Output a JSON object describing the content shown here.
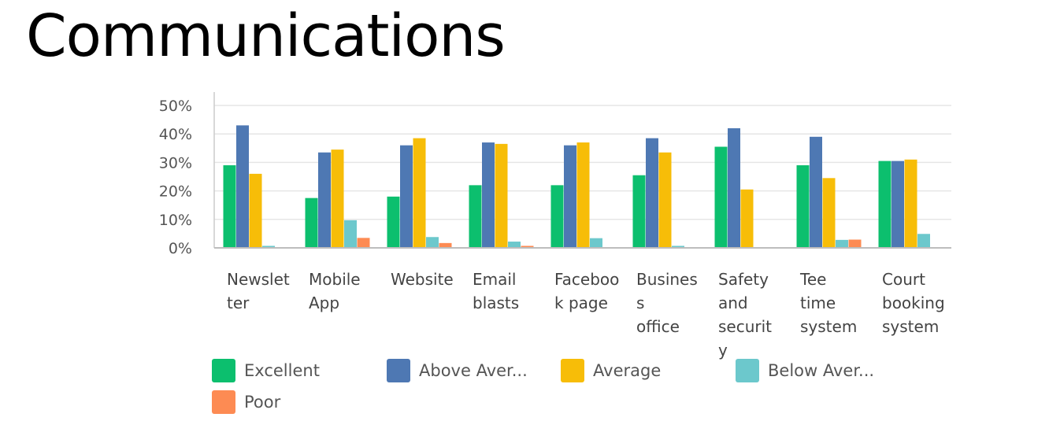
{
  "page": {
    "title": "Communications"
  },
  "chart_data": {
    "type": "bar",
    "title": "",
    "xlabel": "",
    "ylabel": "",
    "ylim": [
      0,
      50
    ],
    "yticks": [
      "0%",
      "10%",
      "20%",
      "30%",
      "40%",
      "50%"
    ],
    "grid": true,
    "legend_position": "bottom",
    "categories": [
      [
        "Newslet",
        "ter"
      ],
      [
        "Mobile",
        "App"
      ],
      [
        "Website"
      ],
      [
        "Email",
        "blasts"
      ],
      [
        "Faceboo",
        "k page"
      ],
      [
        "Busines",
        "s",
        "office"
      ],
      [
        "Safety",
        "and",
        "securit",
        "y"
      ],
      [
        "Tee",
        "time",
        "system"
      ],
      [
        "Court",
        "booking",
        "system"
      ]
    ],
    "series": [
      {
        "name": "Excellent",
        "color": "#0cbf6e",
        "values": [
          29,
          17.5,
          18,
          22,
          22,
          25.5,
          35.5,
          29,
          30.5
        ]
      },
      {
        "name": "Above Aver...",
        "color": "#4e78b3",
        "values": [
          43,
          33.5,
          36,
          37,
          36,
          38.5,
          42,
          39,
          30.5
        ]
      },
      {
        "name": "Average",
        "color": "#f7bd08",
        "values": [
          26,
          34.5,
          38.5,
          36.5,
          37,
          33.5,
          20.5,
          24.5,
          31
        ]
      },
      {
        "name": "Below Aver...",
        "color": "#6cc8cc",
        "values": [
          0.7,
          9.7,
          3.8,
          2.2,
          3.4,
          0.7,
          0,
          2.8,
          4.9
        ]
      },
      {
        "name": "Poor",
        "color": "#fd8b53",
        "values": [
          0,
          3.5,
          1.7,
          0.7,
          0,
          0,
          0,
          2.9,
          0
        ]
      }
    ]
  }
}
